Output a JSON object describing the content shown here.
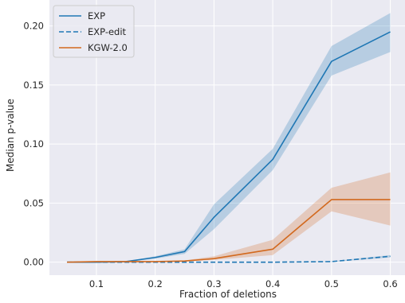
{
  "chart_data": {
    "type": "line",
    "xlabel": "Fraction of deletions",
    "ylabel": "Median p-value",
    "xlim": [
      0.02,
      0.625
    ],
    "ylim": [
      -0.011,
      0.222
    ],
    "xticks": [
      0.1,
      0.2,
      0.3,
      0.4,
      0.5,
      0.6
    ],
    "xtick_labels": [
      "0.1",
      "0.2",
      "0.3",
      "0.4",
      "0.5",
      "0.6"
    ],
    "yticks": [
      0.0,
      0.05,
      0.1,
      0.15,
      0.2
    ],
    "ytick_labels": [
      "0.00",
      "0.05",
      "0.10",
      "0.15",
      "0.20"
    ],
    "grid": true,
    "background": "#eaeaf2",
    "legend_position": "top-left",
    "x": [
      0.05,
      0.1,
      0.15,
      0.2,
      0.25,
      0.3,
      0.4,
      0.5,
      0.6
    ],
    "series": [
      {
        "name": "EXP",
        "color": "#1f77b4",
        "dash": "solid",
        "values": [
          0.0,
          0.0,
          0.0005,
          0.004,
          0.009,
          0.038,
          0.087,
          0.17,
          0.195
        ],
        "lower": [
          0.0,
          0.0,
          0.0003,
          0.003,
          0.007,
          0.028,
          0.078,
          0.158,
          0.178
        ],
        "upper": [
          0.0,
          0.0,
          0.0008,
          0.005,
          0.011,
          0.049,
          0.096,
          0.183,
          0.211
        ]
      },
      {
        "name": "EXP-edit",
        "color": "#1f77b4",
        "dash": "dashed",
        "values": [
          0.0,
          0.0,
          0.0,
          0.0,
          0.0,
          0.0,
          0.0,
          0.0005,
          0.005
        ],
        "lower": [
          0.0,
          0.0,
          0.0,
          0.0,
          0.0,
          0.0,
          0.0,
          0.0002,
          0.004
        ],
        "upper": [
          0.0,
          0.0,
          0.0,
          0.0,
          0.0,
          0.0,
          0.0,
          0.0008,
          0.006
        ]
      },
      {
        "name": "KGW-2.0",
        "color": "#d2691e",
        "dash": "solid",
        "values": [
          0.0,
          0.0005,
          0.0005,
          0.0005,
          0.001,
          0.003,
          0.011,
          0.053,
          0.053
        ],
        "lower": [
          0.0,
          0.0003,
          0.0003,
          0.0003,
          0.0006,
          0.002,
          0.006,
          0.043,
          0.031
        ],
        "upper": [
          0.0,
          0.0008,
          0.0008,
          0.0008,
          0.0015,
          0.005,
          0.019,
          0.063,
          0.076
        ]
      }
    ]
  }
}
